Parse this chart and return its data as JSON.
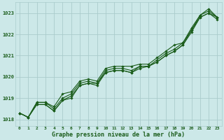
{
  "title": "Graphe pression niveau de la mer (hPa)",
  "bg_color": "#cce8e8",
  "grid_color": "#aacccc",
  "line_color": "#1a5c1a",
  "xlim": [
    -0.5,
    23.5
  ],
  "ylim": [
    1017.7,
    1023.5
  ],
  "yticks": [
    1018,
    1019,
    1020,
    1021,
    1022,
    1023
  ],
  "xticks": [
    0,
    1,
    2,
    3,
    4,
    5,
    6,
    7,
    8,
    9,
    10,
    11,
    12,
    13,
    14,
    15,
    16,
    17,
    18,
    19,
    20,
    21,
    22,
    23
  ],
  "series": [
    [
      1018.3,
      1018.1,
      1018.7,
      1018.7,
      1018.4,
      1018.9,
      1019.0,
      1019.6,
      1019.7,
      1019.7,
      1020.2,
      1020.3,
      1020.3,
      1020.2,
      1020.5,
      1020.5,
      1020.7,
      1021.0,
      1021.2,
      1021.5,
      1022.2,
      1022.8,
      1023.0,
      1022.8
    ],
    [
      1018.3,
      1018.1,
      1018.8,
      1018.8,
      1018.6,
      1019.2,
      1019.3,
      1019.8,
      1019.9,
      1019.8,
      1020.4,
      1020.5,
      1020.5,
      1020.5,
      1020.6,
      1020.6,
      1020.9,
      1021.2,
      1021.5,
      1021.6,
      1022.3,
      1022.9,
      1023.2,
      1022.8
    ],
    [
      1018.3,
      1018.1,
      1018.8,
      1018.8,
      1018.5,
      1019.0,
      1019.2,
      1019.7,
      1019.8,
      1019.7,
      1020.3,
      1020.4,
      1020.4,
      1020.3,
      1020.5,
      1020.5,
      1020.8,
      1021.1,
      1021.3,
      1021.6,
      1022.2,
      1022.9,
      1023.1,
      1022.8
    ],
    [
      1018.3,
      1018.1,
      1018.7,
      1018.7,
      1018.4,
      1018.9,
      1019.1,
      1019.6,
      1019.7,
      1019.6,
      1020.2,
      1020.3,
      1020.3,
      1020.2,
      1020.4,
      1020.5,
      1020.7,
      1021.0,
      1021.2,
      1021.5,
      1022.1,
      1022.8,
      1023.0,
      1022.7
    ]
  ],
  "marker": "D",
  "marker_size": 1.8,
  "linewidth": 0.8
}
